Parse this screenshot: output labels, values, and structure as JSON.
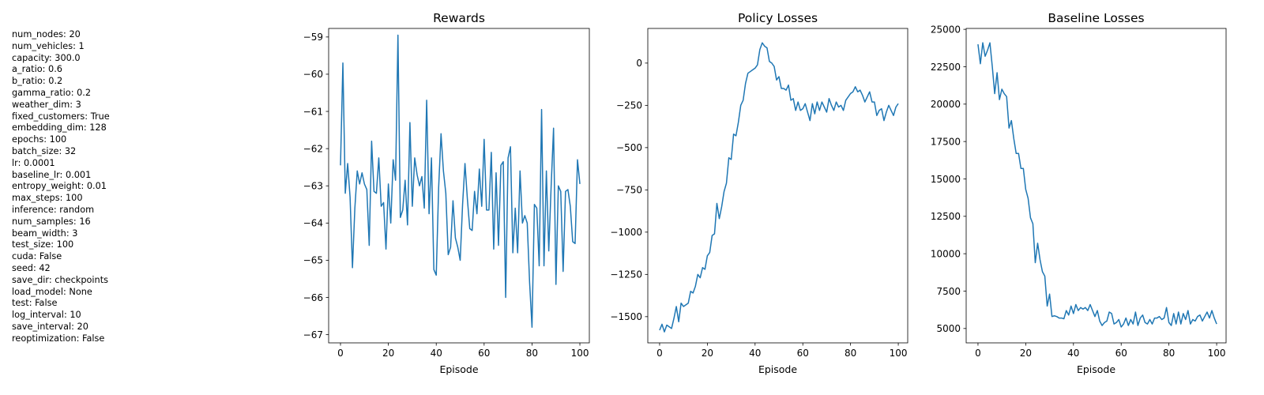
{
  "params": [
    "num_nodes: 20",
    "num_vehicles: 1",
    "capacity: 300.0",
    "a_ratio: 0.6",
    "b_ratio: 0.2",
    "gamma_ratio: 0.2",
    "weather_dim: 3",
    "fixed_customers: True",
    "embedding_dim: 128",
    "epochs: 100",
    "batch_size: 32",
    "lr: 0.0001",
    "baseline_lr: 0.001",
    "entropy_weight: 0.01",
    "max_steps: 100",
    "inference: random",
    "num_samples: 16",
    "beam_width: 3",
    "test_size: 100",
    "cuda: False",
    "seed: 42",
    "save_dir: checkpoints",
    "load_model: None",
    "test: False",
    "log_interval: 10",
    "save_interval: 20",
    "reoptimization: False"
  ],
  "colors": {
    "line": "#1f77b4",
    "axes": "#000000"
  },
  "chart_data": [
    {
      "type": "line",
      "title": "Rewards",
      "xlabel": "Episode",
      "ylabel": "",
      "xlim": [
        -4.95,
        103.95
      ],
      "ylim": [
        -67.22,
        -58.77
      ],
      "xticks": [
        0,
        20,
        40,
        60,
        80,
        100
      ],
      "yticks": [
        -67,
        -66,
        -65,
        -64,
        -63,
        -62,
        -61,
        -60,
        -59
      ],
      "grid": false,
      "values": [
        -62.45,
        -59.7,
        -63.2,
        -62.4,
        -63.3,
        -65.2,
        -63.6,
        -62.6,
        -62.95,
        -62.65,
        -62.95,
        -63.1,
        -64.6,
        -61.8,
        -63.15,
        -63.2,
        -62.25,
        -63.55,
        -63.45,
        -64.7,
        -62.95,
        -64.0,
        -62.3,
        -62.85,
        -58.95,
        -63.85,
        -63.65,
        -62.85,
        -64.05,
        -61.3,
        -63.55,
        -62.25,
        -62.7,
        -63.0,
        -62.75,
        -63.6,
        -60.7,
        -63.75,
        -62.25,
        -65.25,
        -65.4,
        -63.05,
        -61.6,
        -62.6,
        -63.2,
        -64.85,
        -64.65,
        -63.4,
        -64.4,
        -64.65,
        -65.0,
        -63.5,
        -62.4,
        -63.35,
        -64.15,
        -64.2,
        -63.15,
        -63.75,
        -62.55,
        -63.55,
        -61.75,
        -63.65,
        -63.65,
        -62.1,
        -64.7,
        -62.65,
        -64.6,
        -62.45,
        -62.35,
        -66.0,
        -62.25,
        -61.95,
        -64.8,
        -63.6,
        -64.8,
        -62.6,
        -64.0,
        -63.8,
        -64.0,
        -65.6,
        -66.8,
        -63.5,
        -63.6,
        -65.15,
        -60.95,
        -65.15,
        -62.6,
        -64.75,
        -63.0,
        -61.45,
        -65.65,
        -63.0,
        -63.15,
        -65.3,
        -63.15,
        -63.1,
        -63.55,
        -64.5,
        -64.55,
        -62.3,
        -62.95
      ]
    },
    {
      "type": "line",
      "title": "Policy Losses",
      "xlabel": "Episode",
      "ylabel": "",
      "xlim": [
        -4.95,
        103.95
      ],
      "ylim": [
        -1655,
        205
      ],
      "xticks": [
        0,
        20,
        40,
        60,
        80,
        100
      ],
      "yticks": [
        -1500,
        -1250,
        -1000,
        -750,
        -500,
        -250,
        0
      ],
      "grid": false,
      "values": [
        -1580,
        -1545,
        -1590,
        -1550,
        -1560,
        -1570,
        -1510,
        -1440,
        -1530,
        -1420,
        -1440,
        -1430,
        -1420,
        -1350,
        -1360,
        -1320,
        -1250,
        -1270,
        -1210,
        -1220,
        -1140,
        -1120,
        -1020,
        -1010,
        -830,
        -920,
        -850,
        -760,
        -710,
        -560,
        -570,
        -420,
        -430,
        -350,
        -250,
        -220,
        -120,
        -60,
        -50,
        -40,
        -30,
        -10,
        80,
        120,
        100,
        90,
        10,
        0,
        -20,
        -100,
        -80,
        -150,
        -150,
        -160,
        -130,
        -220,
        -210,
        -280,
        -230,
        -280,
        -270,
        -240,
        -290,
        -340,
        -240,
        -300,
        -230,
        -280,
        -230,
        -260,
        -290,
        -210,
        -250,
        -280,
        -230,
        -260,
        -250,
        -280,
        -220,
        -200,
        -180,
        -170,
        -140,
        -170,
        -160,
        -190,
        -230,
        -200,
        -170,
        -230,
        -230,
        -310,
        -280,
        -270,
        -340,
        -290,
        -250,
        -280,
        -310,
        -260,
        -240
      ]
    },
    {
      "type": "line",
      "title": "Baseline Losses",
      "xlabel": "Episode",
      "ylabel": "",
      "xlim": [
        -4.95,
        103.95
      ],
      "ylim": [
        4040,
        25060
      ],
      "xticks": [
        0,
        20,
        40,
        60,
        80,
        100
      ],
      "yticks": [
        5000,
        7500,
        10000,
        12500,
        15000,
        17500,
        20000,
        22500,
        25000
      ],
      "grid": false,
      "values": [
        24000,
        22700,
        24100,
        23200,
        23600,
        24100,
        22500,
        20700,
        22100,
        20300,
        21000,
        20700,
        20500,
        18400,
        18900,
        17700,
        16700,
        16700,
        15700,
        15700,
        14300,
        13700,
        12400,
        12000,
        9400,
        10700,
        9600,
        8800,
        8500,
        6500,
        7300,
        5800,
        5850,
        5800,
        5700,
        5700,
        5650,
        6200,
        5900,
        6500,
        6000,
        6600,
        6200,
        6400,
        6300,
        6400,
        6200,
        6600,
        6200,
        5800,
        6200,
        5500,
        5200,
        5400,
        5500,
        6100,
        6000,
        5300,
        5400,
        5600,
        5100,
        5300,
        5700,
        5200,
        5600,
        5300,
        6100,
        5200,
        5700,
        5900,
        5400,
        5300,
        5600,
        5300,
        5700,
        5700,
        5800,
        5600,
        5700,
        6400,
        5400,
        5200,
        6000,
        5300,
        6100,
        5300,
        6000,
        5600,
        6200,
        5300,
        5600,
        5500,
        5800,
        5900,
        5500,
        5800,
        6100,
        5700,
        6200,
        5700,
        5300
      ]
    }
  ]
}
